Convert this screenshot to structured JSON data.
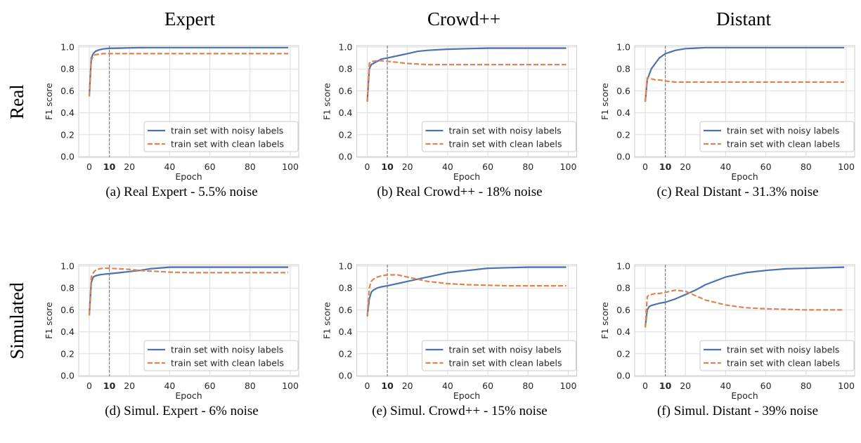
{
  "column_titles": [
    "Expert",
    "Crowd++",
    "Distant"
  ],
  "row_labels": [
    "Real",
    "Simulated"
  ],
  "colors": {
    "noisy": "#4c72b0",
    "clean": "#dd8452",
    "grid": "#dddddd",
    "vline": "#808080"
  },
  "chart_data": [
    {
      "type": "line",
      "caption": "(a) Real Expert  - 5.5% noise",
      "xlabel": "Epoch",
      "ylabel": "F1 score",
      "xlim": [
        0,
        100
      ],
      "ylim": [
        0,
        1
      ],
      "xticks": [
        "0",
        "10",
        "20",
        "40",
        "60",
        "80",
        "100"
      ],
      "xtick_values": [
        0,
        10,
        20,
        40,
        60,
        80,
        100
      ],
      "yticks": [
        "0.0",
        "0.2",
        "0.4",
        "0.6",
        "0.8",
        "1.0"
      ],
      "vline": 10,
      "grid": true,
      "legend": "bottom-right",
      "x": [
        0,
        1,
        2,
        3,
        5,
        7,
        10,
        15,
        20,
        25,
        30,
        40,
        50,
        60,
        70,
        80,
        90,
        99
      ],
      "series": [
        {
          "name": "train set with noisy labels",
          "style": "solid",
          "values": [
            0.55,
            0.9,
            0.94,
            0.96,
            0.975,
            0.983,
            0.988,
            0.99,
            0.992,
            0.994,
            0.995,
            0.995,
            0.995,
            0.995,
            0.995,
            0.995,
            0.995,
            0.995
          ]
        },
        {
          "name": "train set with clean labels",
          "style": "dashed",
          "values": [
            0.55,
            0.88,
            0.92,
            0.93,
            0.935,
            0.94,
            0.94,
            0.94,
            0.94,
            0.94,
            0.94,
            0.94,
            0.94,
            0.94,
            0.94,
            0.94,
            0.94,
            0.94
          ]
        }
      ]
    },
    {
      "type": "line",
      "caption": "(b) Real Crowd++  - 18% noise",
      "xlabel": "Epoch",
      "ylabel": "F1 score",
      "xlim": [
        0,
        100
      ],
      "ylim": [
        0,
        1
      ],
      "xticks": [
        "0",
        "10",
        "20",
        "40",
        "60",
        "80",
        "100"
      ],
      "xtick_values": [
        0,
        10,
        20,
        40,
        60,
        80,
        100
      ],
      "yticks": [
        "0.0",
        "0.2",
        "0.4",
        "0.6",
        "0.8",
        "1.0"
      ],
      "vline": 10,
      "grid": true,
      "legend": "bottom-right",
      "x": [
        0,
        1,
        2,
        3,
        5,
        7,
        10,
        15,
        20,
        25,
        30,
        40,
        50,
        60,
        70,
        80,
        90,
        99
      ],
      "series": [
        {
          "name": "train set with noisy labels",
          "style": "solid",
          "values": [
            0.5,
            0.8,
            0.84,
            0.85,
            0.87,
            0.89,
            0.9,
            0.92,
            0.94,
            0.96,
            0.97,
            0.98,
            0.985,
            0.99,
            0.99,
            0.99,
            0.99,
            0.99
          ]
        },
        {
          "name": "train set with clean labels",
          "style": "dashed",
          "values": [
            0.5,
            0.85,
            0.87,
            0.87,
            0.875,
            0.875,
            0.87,
            0.86,
            0.85,
            0.845,
            0.84,
            0.84,
            0.84,
            0.84,
            0.84,
            0.84,
            0.84,
            0.84
          ]
        }
      ]
    },
    {
      "type": "line",
      "caption": "(c) Real Distant  - 31.3% noise",
      "xlabel": "Epoch",
      "ylabel": "F1 score",
      "xlim": [
        0,
        100
      ],
      "ylim": [
        0,
        1
      ],
      "xticks": [
        "0",
        "10",
        "20",
        "40",
        "60",
        "80",
        "100"
      ],
      "xtick_values": [
        0,
        10,
        20,
        40,
        60,
        80,
        100
      ],
      "yticks": [
        "0.0",
        "0.2",
        "0.4",
        "0.6",
        "0.8",
        "1.0"
      ],
      "vline": 10,
      "grid": true,
      "legend": "bottom-right",
      "x": [
        0,
        1,
        2,
        3,
        5,
        7,
        10,
        15,
        20,
        25,
        30,
        40,
        50,
        60,
        70,
        80,
        90,
        99
      ],
      "series": [
        {
          "name": "train set with noisy labels",
          "style": "solid",
          "values": [
            0.5,
            0.7,
            0.75,
            0.8,
            0.85,
            0.9,
            0.94,
            0.97,
            0.985,
            0.99,
            0.995,
            0.995,
            0.995,
            0.995,
            0.995,
            0.995,
            0.995,
            0.995
          ]
        },
        {
          "name": "train set with clean labels",
          "style": "dashed",
          "values": [
            0.5,
            0.72,
            0.72,
            0.71,
            0.7,
            0.7,
            0.69,
            0.68,
            0.68,
            0.68,
            0.68,
            0.68,
            0.68,
            0.68,
            0.68,
            0.68,
            0.68,
            0.68
          ]
        }
      ]
    },
    {
      "type": "line",
      "caption": "(d) Simul. Expert  - 6% noise",
      "xlabel": "Epoch",
      "ylabel": "F1 score",
      "xlim": [
        0,
        100
      ],
      "ylim": [
        0,
        1
      ],
      "xticks": [
        "0",
        "10",
        "20",
        "40",
        "60",
        "80",
        "100"
      ],
      "xtick_values": [
        0,
        10,
        20,
        40,
        60,
        80,
        100
      ],
      "yticks": [
        "0.0",
        "0.2",
        "0.4",
        "0.6",
        "0.8",
        "1.0"
      ],
      "vline": 10,
      "grid": true,
      "legend": "bottom-right",
      "x": [
        0,
        1,
        2,
        3,
        5,
        7,
        10,
        15,
        20,
        25,
        30,
        40,
        50,
        60,
        70,
        80,
        90,
        99
      ],
      "series": [
        {
          "name": "train set with noisy labels",
          "style": "solid",
          "values": [
            0.55,
            0.85,
            0.9,
            0.91,
            0.92,
            0.925,
            0.93,
            0.94,
            0.95,
            0.96,
            0.975,
            0.99,
            0.99,
            0.99,
            0.99,
            0.99,
            0.99,
            0.99
          ]
        },
        {
          "name": "train set with clean labels",
          "style": "dashed",
          "values": [
            0.55,
            0.9,
            0.94,
            0.96,
            0.975,
            0.98,
            0.98,
            0.975,
            0.97,
            0.96,
            0.955,
            0.945,
            0.94,
            0.94,
            0.94,
            0.94,
            0.94,
            0.94
          ]
        }
      ]
    },
    {
      "type": "line",
      "caption": "(e) Simul. Crowd++  - 15% noise",
      "xlabel": "Epoch",
      "ylabel": "F1 score",
      "xlim": [
        0,
        100
      ],
      "ylim": [
        0,
        1
      ],
      "xticks": [
        "0",
        "10",
        "20",
        "40",
        "60",
        "80",
        "100"
      ],
      "xtick_values": [
        0,
        10,
        20,
        40,
        60,
        80,
        100
      ],
      "yticks": [
        "0.0",
        "0.2",
        "0.4",
        "0.6",
        "0.8",
        "1.0"
      ],
      "vline": 10,
      "grid": true,
      "legend": "bottom-right",
      "x": [
        0,
        1,
        2,
        3,
        5,
        7,
        10,
        15,
        20,
        25,
        30,
        40,
        50,
        60,
        70,
        80,
        90,
        99
      ],
      "series": [
        {
          "name": "train set with noisy labels",
          "style": "solid",
          "values": [
            0.54,
            0.7,
            0.76,
            0.78,
            0.8,
            0.81,
            0.82,
            0.84,
            0.86,
            0.88,
            0.9,
            0.94,
            0.96,
            0.98,
            0.985,
            0.99,
            0.99,
            0.99
          ]
        },
        {
          "name": "train set with clean labels",
          "style": "dashed",
          "values": [
            0.54,
            0.8,
            0.86,
            0.88,
            0.9,
            0.91,
            0.92,
            0.92,
            0.9,
            0.88,
            0.86,
            0.84,
            0.83,
            0.825,
            0.82,
            0.82,
            0.82,
            0.82
          ]
        }
      ]
    },
    {
      "type": "line",
      "caption": "(f) Simul. Distant  - 39% noise",
      "xlabel": "Epoch",
      "ylabel": "F1 score",
      "xlim": [
        0,
        100
      ],
      "ylim": [
        0,
        1
      ],
      "xticks": [
        "0",
        "10",
        "20",
        "40",
        "60",
        "80",
        "100"
      ],
      "xtick_values": [
        0,
        10,
        20,
        40,
        60,
        80,
        100
      ],
      "yticks": [
        "0.0",
        "0.2",
        "0.4",
        "0.6",
        "0.8",
        "1.0"
      ],
      "vline": 10,
      "grid": true,
      "legend": "bottom-right",
      "x": [
        0,
        1,
        2,
        3,
        5,
        7,
        10,
        15,
        20,
        25,
        30,
        40,
        50,
        60,
        70,
        80,
        90,
        99
      ],
      "series": [
        {
          "name": "train set with noisy labels",
          "style": "solid",
          "values": [
            0.44,
            0.6,
            0.63,
            0.64,
            0.65,
            0.66,
            0.67,
            0.7,
            0.74,
            0.78,
            0.83,
            0.9,
            0.94,
            0.96,
            0.975,
            0.98,
            0.985,
            0.99
          ]
        },
        {
          "name": "train set with clean labels",
          "style": "dashed",
          "values": [
            0.44,
            0.72,
            0.74,
            0.74,
            0.75,
            0.75,
            0.76,
            0.78,
            0.77,
            0.73,
            0.69,
            0.645,
            0.62,
            0.61,
            0.605,
            0.6,
            0.6,
            0.6
          ]
        }
      ]
    }
  ]
}
